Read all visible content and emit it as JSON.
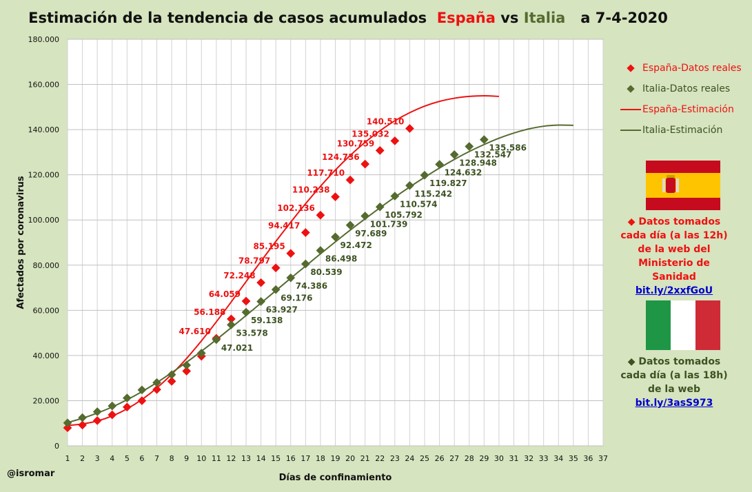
{
  "title": {
    "prefix": "Estimación de la tendencia de casos acumulados",
    "country1": "España",
    "vs": "vs",
    "country2": "Italia",
    "date": "a 7-4-2020"
  },
  "colors": {
    "spain": "#ee1111",
    "italy": "#556b2f",
    "background": "#d6e4bf",
    "plot_bg": "#ffffff",
    "grid": "#c8c8c8"
  },
  "legend": {
    "spain_real": "España-Datos reales",
    "italy_real": "Italia-Datos reales",
    "spain_est": "España-Estimación",
    "italy_est": "Italia-Estimación"
  },
  "notes": {
    "spain": {
      "lines": [
        "◆ Datos tomados",
        "cada día (a las 12h)",
        "de la web del",
        "Ministerio de Sanidad"
      ],
      "link": "bit.ly/2xxfGoU"
    },
    "italy": {
      "lines": [
        "◆ Datos tomados",
        "cada día (a las 18h)",
        "de la web"
      ],
      "link": "bit.ly/3asS973"
    }
  },
  "credit": "@isromar",
  "chart_data": {
    "type": "line",
    "xlabel": "Días de confinamiento",
    "ylabel": "Afectados por coronavirus",
    "xlim": [
      1,
      37
    ],
    "ylim": [
      0,
      180000
    ],
    "x_ticks": [
      1,
      2,
      3,
      4,
      5,
      6,
      7,
      8,
      9,
      10,
      11,
      12,
      13,
      14,
      15,
      16,
      17,
      18,
      19,
      20,
      21,
      22,
      23,
      24,
      25,
      26,
      27,
      28,
      29,
      30,
      31,
      32,
      33,
      34,
      35,
      36,
      37
    ],
    "y_ticks": [
      0,
      20000,
      40000,
      60000,
      80000,
      100000,
      120000,
      140000,
      160000,
      180000
    ],
    "y_tick_labels": [
      "0",
      "20.000",
      "40.000",
      "60.000",
      "80.000",
      "100.000",
      "120.000",
      "140.000",
      "160.000",
      "180.000"
    ],
    "grid": true,
    "legend_position": "right",
    "series": [
      {
        "name": "España-Datos reales",
        "kind": "markers",
        "x": [
          1,
          2,
          3,
          4,
          5,
          6,
          7,
          8,
          9,
          10,
          11,
          12,
          13,
          14,
          15,
          16,
          17,
          18,
          19,
          20,
          21,
          22,
          23,
          24
        ],
        "values": [
          7988,
          9191,
          11178,
          13716,
          17147,
          19980,
          24926,
          28572,
          33089,
          39673,
          47610,
          56188,
          64059,
          72248,
          78797,
          85195,
          94417,
          102136,
          110238,
          117710,
          124736,
          130759,
          135032,
          140510
        ],
        "labels": [
          "",
          "",
          "",
          "",
          "",
          "",
          "",
          "",
          "",
          "",
          "47.610",
          "56.188",
          "64.059",
          "72.248",
          "78.797",
          "85.195",
          "94.417",
          "102.136",
          "110.238",
          "117.710",
          "124.736",
          "130.759",
          "135.032",
          "140.510"
        ]
      },
      {
        "name": "Italia-Datos reales",
        "kind": "markers",
        "x": [
          1,
          2,
          3,
          4,
          5,
          6,
          7,
          8,
          9,
          10,
          11,
          12,
          13,
          14,
          15,
          16,
          17,
          18,
          19,
          20,
          21,
          22,
          23,
          24,
          25,
          26,
          27,
          28,
          29
        ],
        "values": [
          10149,
          12462,
          15113,
          17660,
          21157,
          24747,
          27980,
          31506,
          35713,
          41035,
          47021,
          53578,
          59138,
          63927,
          69176,
          74386,
          80539,
          86498,
          92472,
          97689,
          101739,
          105792,
          110574,
          115242,
          119827,
          124632,
          128948,
          132547,
          135586
        ],
        "labels": [
          "",
          "",
          "",
          "",
          "",
          "",
          "",
          "",
          "",
          "",
          "47.021",
          "53.578",
          "59.138",
          "63.927",
          "69.176",
          "74.386",
          "80.539",
          "86.498",
          "92.472",
          "97.689",
          "101.739",
          "105.792",
          "110.574",
          "115.242",
          "119.827",
          "124.632",
          "128.948",
          "132.547",
          "135.586"
        ]
      },
      {
        "name": "España-Estimación",
        "kind": "line",
        "x": [
          1,
          2,
          3,
          4,
          5,
          6,
          7,
          8,
          9,
          10,
          11,
          12,
          13,
          14,
          15,
          16,
          17,
          18,
          19,
          20,
          21,
          22,
          23,
          24,
          25,
          26,
          27,
          28,
          29,
          30
        ],
        "values": [
          9000,
          9700,
          11000,
          13200,
          16400,
          20500,
          25600,
          31700,
          38700,
          46500,
          54900,
          63700,
          72700,
          81700,
          90500,
          99000,
          107200,
          114900,
          122100,
          128600,
          134400,
          139500,
          143900,
          147500,
          150400,
          152500,
          153900,
          154700,
          155000,
          154700
        ]
      },
      {
        "name": "Italia-Estimación",
        "kind": "line",
        "x": [
          1,
          2,
          3,
          4,
          5,
          6,
          7,
          8,
          9,
          10,
          11,
          12,
          13,
          14,
          15,
          16,
          17,
          18,
          19,
          20,
          21,
          22,
          23,
          24,
          25,
          26,
          27,
          28,
          29,
          30,
          31,
          32,
          33,
          34,
          35
        ],
        "values": [
          10300,
          12200,
          14500,
          17200,
          20400,
          24000,
          28000,
          32400,
          37000,
          41900,
          47000,
          52300,
          57700,
          63200,
          68700,
          74200,
          79600,
          85000,
          90300,
          95500,
          100500,
          105400,
          110100,
          114600,
          118900,
          123000,
          126800,
          130300,
          133400,
          136200,
          138500,
          140300,
          141500,
          142000,
          141900
        ]
      }
    ]
  }
}
